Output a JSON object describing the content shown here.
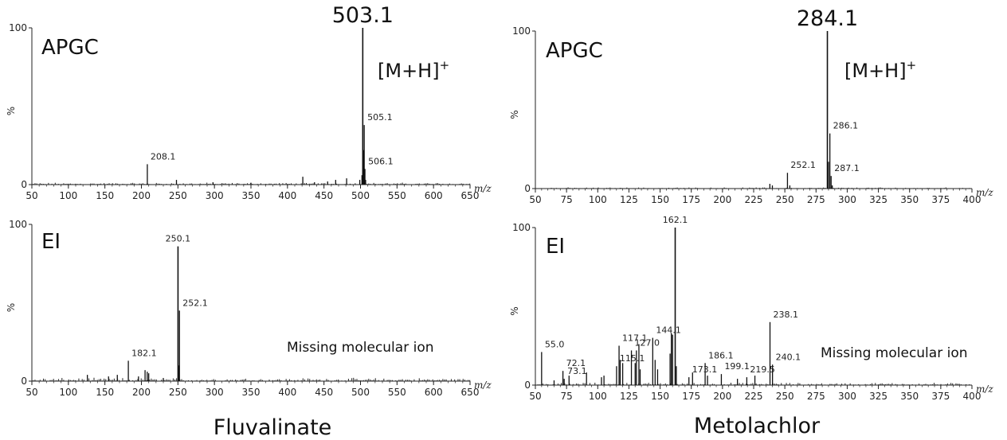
{
  "compounds": [
    {
      "name": "Fluvalinate"
    },
    {
      "name": "Metolachlor"
    }
  ],
  "chart_data": [
    {
      "type": "bar",
      "compound": "Fluvalinate",
      "method": "APGC",
      "ion_annotation": {
        "main": "[M+H]",
        "sup": "+"
      },
      "note": "",
      "xlabel": "m/z",
      "ylabel": "%",
      "xlim": [
        50,
        650
      ],
      "ylim": [
        0,
        100
      ],
      "xticks": [
        50,
        100,
        150,
        200,
        250,
        300,
        350,
        400,
        450,
        500,
        550,
        600,
        650
      ],
      "yticks": [
        0,
        100
      ],
      "peaks": [
        {
          "mz": 503.1,
          "intensity": 100,
          "label": "503.1",
          "big": true
        },
        {
          "mz": 505.1,
          "intensity": 38,
          "label": "505.1"
        },
        {
          "mz": 506.1,
          "intensity": 10,
          "label": "506.1"
        },
        {
          "mz": 208.1,
          "intensity": 13,
          "label": "208.1"
        },
        {
          "mz": 421,
          "intensity": 5
        },
        {
          "mz": 248,
          "intensity": 3
        },
        {
          "mz": 455,
          "intensity": 2
        },
        {
          "mz": 466,
          "intensity": 3
        },
        {
          "mz": 481,
          "intensity": 4
        },
        {
          "mz": 499,
          "intensity": 3
        },
        {
          "mz": 504,
          "intensity": 22
        },
        {
          "mz": 502,
          "intensity": 6
        },
        {
          "mz": 507,
          "intensity": 3
        },
        {
          "mz": 298,
          "intensity": 1.5
        },
        {
          "mz": 350,
          "intensity": 1.2
        },
        {
          "mz": 437,
          "intensity": 1.5
        }
      ],
      "noise_level": 1
    },
    {
      "type": "bar",
      "compound": "Fluvalinate",
      "method": "EI",
      "note": "Missing molecular ion",
      "xlabel": "m/z",
      "ylabel": "%",
      "xlim": [
        50,
        650
      ],
      "ylim": [
        0,
        100
      ],
      "xticks": [
        50,
        100,
        150,
        200,
        250,
        300,
        350,
        400,
        450,
        500,
        550,
        600,
        650
      ],
      "yticks": [
        0,
        100
      ],
      "peaks": [
        {
          "mz": 250.1,
          "intensity": 86,
          "label": "250.1"
        },
        {
          "mz": 252.1,
          "intensity": 45,
          "label": "252.1"
        },
        {
          "mz": 182.1,
          "intensity": 13,
          "label": "182.1"
        },
        {
          "mz": 205,
          "intensity": 7
        },
        {
          "mz": 208,
          "intensity": 6
        },
        {
          "mz": 210,
          "intensity": 5
        },
        {
          "mz": 126,
          "intensity": 4
        },
        {
          "mz": 155,
          "intensity": 3
        },
        {
          "mz": 167,
          "intensity": 4
        },
        {
          "mz": 196,
          "intensity": 3
        },
        {
          "mz": 251,
          "intensity": 10
        },
        {
          "mz": 230,
          "intensity": 2
        }
      ],
      "noise_level": 1.6
    },
    {
      "type": "bar",
      "compound": "Metolachlor",
      "method": "APGC",
      "ion_annotation": {
        "main": "[M+H]",
        "sup": "+"
      },
      "note": "",
      "xlabel": "m/z",
      "ylabel": "%",
      "xlim": [
        50,
        400
      ],
      "ylim": [
        0,
        100
      ],
      "xticks": [
        50,
        75,
        100,
        125,
        150,
        175,
        200,
        225,
        250,
        275,
        300,
        325,
        350,
        375,
        400
      ],
      "yticks": [
        0,
        100
      ],
      "peaks": [
        {
          "mz": 284.1,
          "intensity": 100,
          "label": "284.1",
          "big": true
        },
        {
          "mz": 286.1,
          "intensity": 35,
          "label": "286.1"
        },
        {
          "mz": 287.1,
          "intensity": 8,
          "label": "287.1"
        },
        {
          "mz": 252.1,
          "intensity": 10,
          "label": "252.1"
        },
        {
          "mz": 285,
          "intensity": 17
        },
        {
          "mz": 238,
          "intensity": 3
        },
        {
          "mz": 240,
          "intensity": 2
        },
        {
          "mz": 254,
          "intensity": 2
        },
        {
          "mz": 288,
          "intensity": 2
        }
      ],
      "noise_level": 0.6
    },
    {
      "type": "bar",
      "compound": "Metolachlor",
      "method": "EI",
      "note": "Missing molecular ion",
      "xlabel": "m/z",
      "ylabel": "%",
      "xlim": [
        50,
        400
      ],
      "ylim": [
        0,
        100
      ],
      "xticks": [
        50,
        75,
        100,
        125,
        150,
        175,
        200,
        225,
        250,
        275,
        300,
        325,
        350,
        375,
        400
      ],
      "yticks": [
        0,
        100
      ],
      "peaks": [
        {
          "mz": 162.1,
          "intensity": 100,
          "label": "162.1"
        },
        {
          "mz": 238.1,
          "intensity": 40,
          "label": "238.1"
        },
        {
          "mz": 144.1,
          "intensity": 30,
          "label": "144.1"
        },
        {
          "mz": 117.1,
          "intensity": 25,
          "label": "117.1"
        },
        {
          "mz": 127.0,
          "intensity": 22,
          "label": "127.0"
        },
        {
          "mz": 186.1,
          "intensity": 14,
          "label": "186.1"
        },
        {
          "mz": 115.1,
          "intensity": 12,
          "label": "115.1"
        },
        {
          "mz": 55.0,
          "intensity": 21,
          "label": "55.0"
        },
        {
          "mz": 72.1,
          "intensity": 9,
          "label": "72.1"
        },
        {
          "mz": 73.1,
          "intensity": 4,
          "label": "73.1"
        },
        {
          "mz": 199.1,
          "intensity": 7,
          "label": "199.1"
        },
        {
          "mz": 173.1,
          "intensity": 5,
          "label": "173.1"
        },
        {
          "mz": 219.5,
          "intensity": 5,
          "label": "219.5"
        },
        {
          "mz": 240.1,
          "intensity": 13,
          "label": "240.1"
        },
        {
          "mz": 159,
          "intensity": 33
        },
        {
          "mz": 160,
          "intensity": 32
        },
        {
          "mz": 158,
          "intensity": 20
        },
        {
          "mz": 133,
          "intensity": 26
        },
        {
          "mz": 131,
          "intensity": 22
        },
        {
          "mz": 130,
          "intensity": 14
        },
        {
          "mz": 146,
          "intensity": 16
        },
        {
          "mz": 120,
          "intensity": 14
        },
        {
          "mz": 118,
          "intensity": 16
        },
        {
          "mz": 91,
          "intensity": 8
        },
        {
          "mz": 77,
          "intensity": 6
        },
        {
          "mz": 105,
          "intensity": 6
        },
        {
          "mz": 148,
          "intensity": 10
        },
        {
          "mz": 176,
          "intensity": 8
        },
        {
          "mz": 188,
          "intensity": 6
        },
        {
          "mz": 212,
          "intensity": 4
        },
        {
          "mz": 226,
          "intensity": 6
        },
        {
          "mz": 163,
          "intensity": 12
        },
        {
          "mz": 134,
          "intensity": 10
        },
        {
          "mz": 103,
          "intensity": 5
        },
        {
          "mz": 65,
          "intensity": 3
        }
      ],
      "noise_level": 1.2
    }
  ]
}
